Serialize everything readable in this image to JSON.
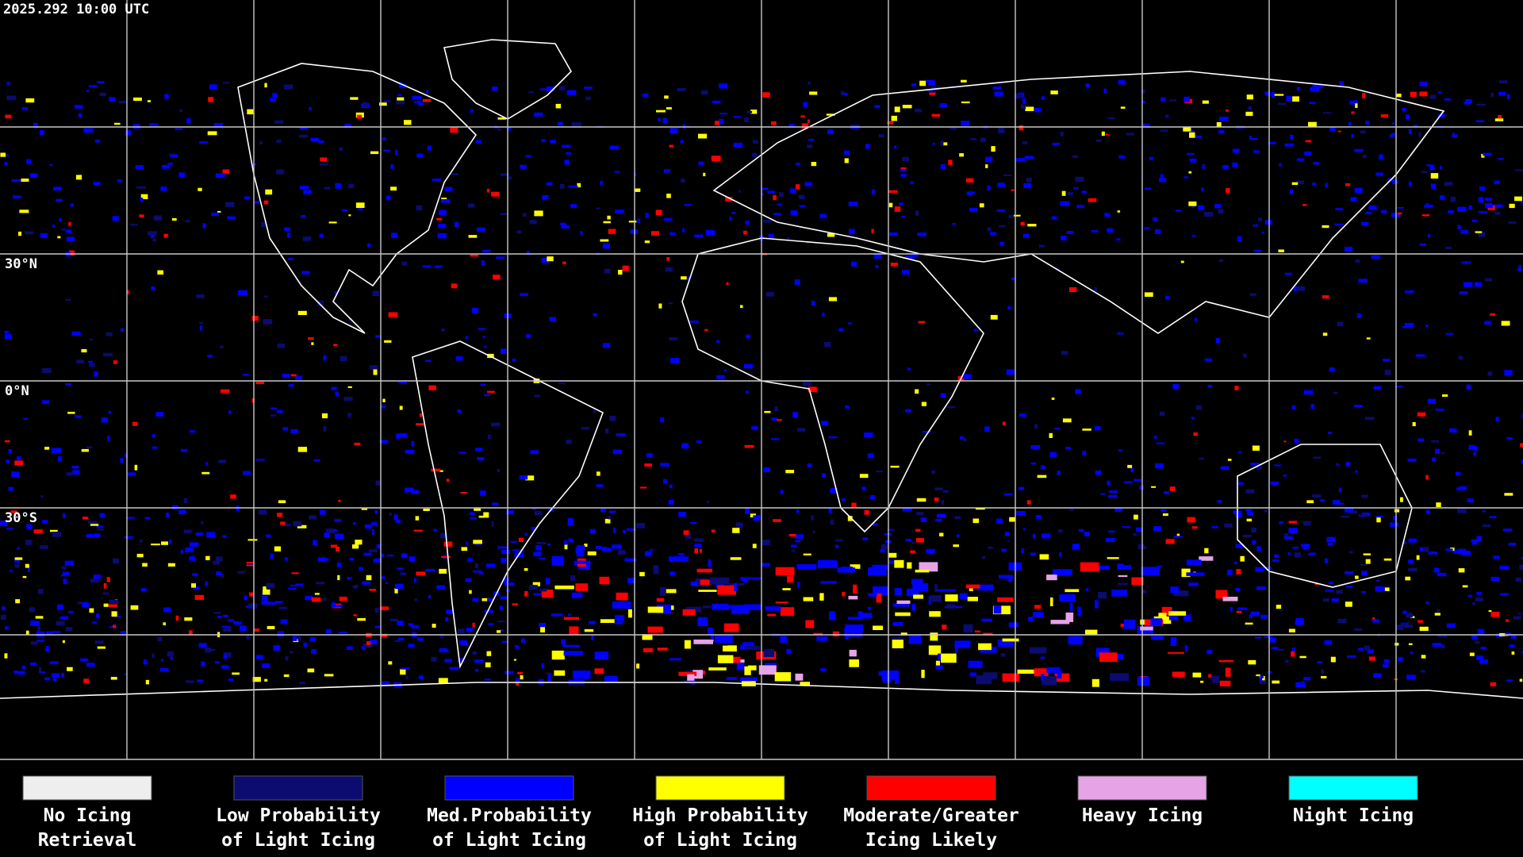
{
  "header": {
    "timestamp": "2025.292 10:00 UTC"
  },
  "latitude_labels": [
    "30°N",
    "0°N",
    "30°S"
  ],
  "legend": {
    "items": [
      {
        "lines": [
          "No Icing",
          "Retrieval"
        ],
        "color": "#eeeeee"
      },
      {
        "lines": [
          "Low Probability",
          "of Light Icing"
        ],
        "color": "#0b0b70"
      },
      {
        "lines": [
          "Med.Probability",
          "of Light Icing"
        ],
        "color": "#0000ff"
      },
      {
        "lines": [
          "High Probability",
          "of Light Icing"
        ],
        "color": "#ffff00"
      },
      {
        "lines": [
          "Moderate/Greater",
          "Icing Likely"
        ],
        "color": "#ff0000"
      },
      {
        "lines": [
          "Heavy Icing"
        ],
        "color": "#e6a3e6"
      },
      {
        "lines": [
          "Night Icing"
        ],
        "color": "#00ffff"
      }
    ]
  }
}
